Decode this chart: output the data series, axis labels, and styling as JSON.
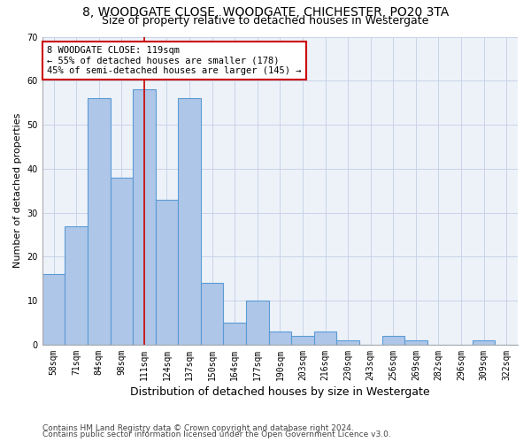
{
  "title1": "8, WOODGATE CLOSE, WOODGATE, CHICHESTER, PO20 3TA",
  "title2": "Size of property relative to detached houses in Westergate",
  "xlabel": "Distribution of detached houses by size in Westergate",
  "ylabel": "Number of detached properties",
  "categories": [
    "58sqm",
    "71sqm",
    "84sqm",
    "98sqm",
    "111sqm",
    "124sqm",
    "137sqm",
    "150sqm",
    "164sqm",
    "177sqm",
    "190sqm",
    "203sqm",
    "216sqm",
    "230sqm",
    "243sqm",
    "256sqm",
    "269sqm",
    "282sqm",
    "296sqm",
    "309sqm",
    "322sqm"
  ],
  "values": [
    16,
    27,
    56,
    38,
    58,
    33,
    56,
    14,
    5,
    10,
    3,
    2,
    3,
    1,
    0,
    2,
    1,
    0,
    0,
    1,
    0
  ],
  "bar_color": "#aec6e8",
  "bar_edge_color": "#5b9bd5",
  "vline_x": 4,
  "vline_color": "#cc0000",
  "annotation_text": "8 WOODGATE CLOSE: 119sqm\n← 55% of detached houses are smaller (178)\n45% of semi-detached houses are larger (145) →",
  "annotation_box_color": "white",
  "annotation_box_edge_color": "#cc0000",
  "ylim": [
    0,
    70
  ],
  "yticks": [
    0,
    10,
    20,
    30,
    40,
    50,
    60,
    70
  ],
  "grid_color": "#c8d4e8",
  "bg_color": "#edf2f9",
  "footnote1": "Contains HM Land Registry data © Crown copyright and database right 2024.",
  "footnote2": "Contains public sector information licensed under the Open Government Licence v3.0.",
  "title1_fontsize": 10,
  "title2_fontsize": 9,
  "xlabel_fontsize": 9,
  "ylabel_fontsize": 8,
  "tick_fontsize": 7,
  "annotation_fontsize": 7.5,
  "footnote_fontsize": 6.5
}
